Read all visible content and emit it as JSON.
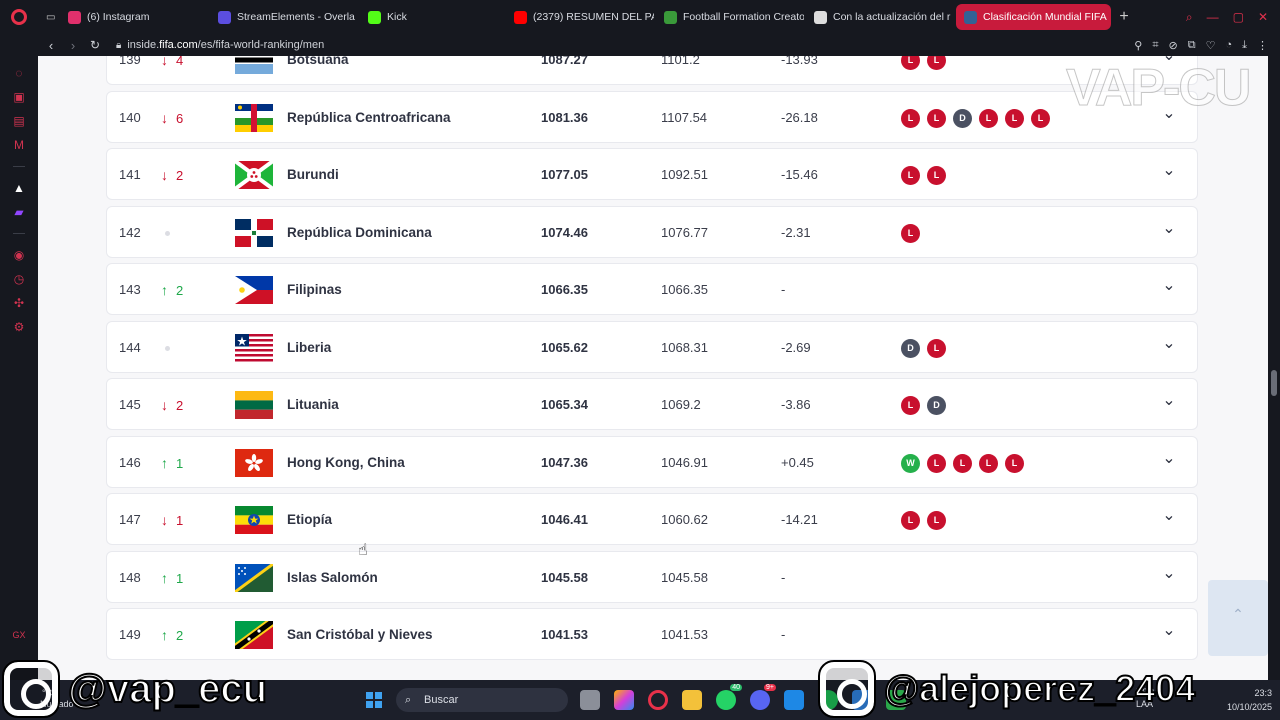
{
  "browser": {
    "tabs": [
      {
        "label": "(6) Instagram",
        "icon": "instagram-icon",
        "color": "#e1306c",
        "active": false
      },
      {
        "label": "StreamElements - Overla",
        "icon": "streamelements-icon",
        "color": "#5b4ee0",
        "active": false
      },
      {
        "label": "Kick",
        "icon": "kick-icon",
        "color": "#53fc18",
        "active": false
      },
      {
        "label": "(2379) RESUMEN DEL PA",
        "icon": "youtube-icon",
        "color": "#ff0000",
        "active": false
      },
      {
        "label": "Football Formation Creato",
        "icon": "football-icon",
        "color": "#3a9a3a",
        "active": false
      },
      {
        "label": "Con la actualización del r",
        "icon": "page-icon",
        "color": "#dddddd",
        "active": false
      },
      {
        "label": "Clasificación Mundial FIFA",
        "icon": "fifa-icon",
        "color": "#326295",
        "active": true
      }
    ],
    "url": {
      "prefix": "inside.",
      "domain": "fifa.com",
      "path": "/es/fifa-world-ranking/men"
    }
  },
  "watermark": "VAP-CU",
  "ranking": {
    "rows": [
      {
        "rank": "139",
        "move_dir": "down",
        "move": "4",
        "flag": "botswana",
        "name": "Botsuana",
        "points": "1087.27",
        "previous": "1101.2",
        "diff": "-13.93",
        "form": [
          "L",
          "L"
        ]
      },
      {
        "rank": "140",
        "move_dir": "down",
        "move": "6",
        "flag": "car",
        "name": "República Centroafricana",
        "points": "1081.36",
        "previous": "1107.54",
        "diff": "-26.18",
        "form": [
          "L",
          "L",
          "D",
          "L",
          "L",
          "L"
        ]
      },
      {
        "rank": "141",
        "move_dir": "down",
        "move": "2",
        "flag": "burundi",
        "name": "Burundi",
        "points": "1077.05",
        "previous": "1092.51",
        "diff": "-15.46",
        "form": [
          "L",
          "L"
        ]
      },
      {
        "rank": "142",
        "move_dir": "same",
        "move": "",
        "flag": "dominican",
        "name": "República Dominicana",
        "points": "1074.46",
        "previous": "1076.77",
        "diff": "-2.31",
        "form": [
          "L"
        ]
      },
      {
        "rank": "143",
        "move_dir": "up",
        "move": "2",
        "flag": "philippines",
        "name": "Filipinas",
        "points": "1066.35",
        "previous": "1066.35",
        "diff": "-",
        "form": []
      },
      {
        "rank": "144",
        "move_dir": "same",
        "move": "",
        "flag": "liberia",
        "name": "Liberia",
        "points": "1065.62",
        "previous": "1068.31",
        "diff": "-2.69",
        "form": [
          "D",
          "L"
        ]
      },
      {
        "rank": "145",
        "move_dir": "down",
        "move": "2",
        "flag": "lithuania",
        "name": "Lituania",
        "points": "1065.34",
        "previous": "1069.2",
        "diff": "-3.86",
        "form": [
          "L",
          "D"
        ]
      },
      {
        "rank": "146",
        "move_dir": "up",
        "move": "1",
        "flag": "hongkong",
        "name": "Hong Kong, China",
        "points": "1047.36",
        "previous": "1046.91",
        "diff": "+0.45",
        "form": [
          "W",
          "L",
          "L",
          "L",
          "L"
        ]
      },
      {
        "rank": "147",
        "move_dir": "down",
        "move": "1",
        "flag": "ethiopia",
        "name": "Etiopía",
        "points": "1046.41",
        "previous": "1060.62",
        "diff": "-14.21",
        "form": [
          "L",
          "L"
        ]
      },
      {
        "rank": "148",
        "move_dir": "up",
        "move": "1",
        "flag": "solomon",
        "name": "Islas Salomón",
        "points": "1045.58",
        "previous": "1045.58",
        "diff": "-",
        "form": []
      },
      {
        "rank": "149",
        "move_dir": "up",
        "move": "2",
        "flag": "stkitts",
        "name": "San Cristóbal y Nieves",
        "points": "1041.53",
        "previous": "1041.53",
        "diff": "-",
        "form": []
      }
    ]
  },
  "overlay": {
    "left_handle": "@vap_ecu",
    "right_handle": "@alejoperez_2404"
  },
  "taskbar": {
    "weather": {
      "temp": "°C",
      "condition": "Nublado"
    },
    "search_placeholder": "Buscar",
    "badges": {
      "whatsapp": "40",
      "discord": "9+"
    },
    "tray": {
      "lang": "ESP",
      "layout": "LAA"
    },
    "clock": {
      "time": "23:3",
      "date": "10/10/2025"
    }
  },
  "colors": {
    "loss": "#c8102e",
    "draw": "#4b5162",
    "win": "#25b04b",
    "up": "#1fa84a",
    "accent": "#c81b3c"
  }
}
